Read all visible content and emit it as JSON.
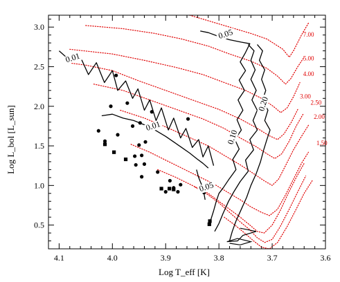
{
  "chart_data": {
    "type": "scatter",
    "title": "",
    "xlabel": "Log T_eff [K]",
    "ylabel": "Log L_bol [L_sun]",
    "xlim": [
      4.12,
      3.6
    ],
    "ylim": [
      0.2,
      3.15
    ],
    "x_inverted": true,
    "grid": false,
    "colors": {
      "axes": "#000000",
      "tracks": "#e00000",
      "contours": "#000000",
      "markers": "#000000"
    },
    "xticks": [
      {
        "value": 4.1,
        "label": "4.1"
      },
      {
        "value": 4.0,
        "label": "4.0"
      },
      {
        "value": 3.9,
        "label": "3.9"
      },
      {
        "value": 3.8,
        "label": "3.8"
      },
      {
        "value": 3.7,
        "label": "3.7"
      },
      {
        "value": 3.6,
        "label": "3.6"
      }
    ],
    "yticks": [
      {
        "value": 0.5,
        "label": "0.5"
      },
      {
        "value": 1.0,
        "label": "1.0"
      },
      {
        "value": 1.5,
        "label": "1.5"
      },
      {
        "value": 2.0,
        "label": "2.0"
      },
      {
        "value": 2.5,
        "label": "2.5"
      },
      {
        "value": 3.0,
        "label": "3.0"
      }
    ],
    "contours": [
      {
        "label": "0.01",
        "label_pos": [
          4.073,
          2.58
        ],
        "points": [
          [
            4.1,
            2.7
          ],
          [
            4.08,
            2.58
          ],
          [
            4.06,
            2.62
          ],
          [
            4.045,
            2.4
          ],
          [
            4.03,
            2.55
          ],
          [
            4.015,
            2.3
          ],
          [
            4.0,
            2.45
          ],
          [
            3.99,
            2.2
          ],
          [
            3.975,
            2.32
          ],
          [
            3.962,
            2.1
          ],
          [
            3.952,
            2.22
          ],
          [
            3.94,
            1.95
          ],
          [
            3.93,
            2.08
          ],
          [
            3.918,
            1.82
          ],
          [
            3.908,
            1.98
          ],
          [
            3.895,
            1.7
          ],
          [
            3.885,
            1.85
          ],
          [
            3.872,
            1.6
          ],
          [
            3.862,
            1.72
          ],
          [
            3.85,
            1.48
          ],
          [
            3.838,
            1.58
          ],
          [
            3.83,
            1.36
          ],
          [
            3.82,
            1.5
          ],
          [
            3.81,
            1.25
          ]
        ]
      },
      {
        "label": "0.01",
        "label_pos": [
          3.922,
          1.72
        ],
        "points": [
          [
            4.02,
            1.88
          ],
          [
            4.0,
            1.9
          ],
          [
            3.98,
            1.85
          ],
          [
            3.96,
            1.82
          ],
          [
            3.945,
            1.78
          ],
          [
            3.93,
            1.74
          ],
          [
            3.915,
            1.68
          ],
          [
            3.9,
            1.62
          ],
          [
            3.885,
            1.55
          ],
          [
            3.87,
            1.48
          ],
          [
            3.855,
            1.41
          ],
          [
            3.842,
            1.34
          ],
          [
            3.83,
            1.28
          ],
          [
            3.82,
            1.22
          ]
        ]
      },
      {
        "label": "0.05",
        "label_pos": [
          3.786,
          2.88
        ],
        "points": [
          [
            3.835,
            2.95
          ],
          [
            3.82,
            2.93
          ],
          [
            3.8,
            2.88
          ],
          [
            3.78,
            2.84
          ],
          [
            3.758,
            2.81
          ],
          [
            3.742,
            2.79
          ],
          [
            3.75,
            2.68
          ],
          [
            3.76,
            2.56
          ],
          [
            3.75,
            2.45
          ],
          [
            3.762,
            2.33
          ],
          [
            3.752,
            2.2
          ],
          [
            3.764,
            2.08
          ],
          [
            3.755,
            1.95
          ],
          [
            3.766,
            1.83
          ],
          [
            3.758,
            1.7
          ],
          [
            3.77,
            1.58
          ],
          [
            3.762,
            1.46
          ],
          [
            3.774,
            1.33
          ],
          [
            3.768,
            1.2
          ],
          [
            3.782,
            1.07
          ],
          [
            3.792,
            0.97
          ],
          [
            3.8,
            0.9
          ],
          [
            3.805,
            0.8
          ],
          [
            3.81,
            0.68
          ],
          [
            3.816,
            0.55
          ]
        ]
      },
      {
        "label": "0.05",
        "label_pos": [
          3.822,
          0.95
        ],
        "points": [
          [
            3.842,
            1.2
          ],
          [
            3.838,
            1.1
          ],
          [
            3.832,
            1.0
          ],
          [
            3.828,
            0.9
          ],
          [
            3.826,
            0.82
          ]
        ]
      },
      {
        "label": "0.10",
        "label_pos": [
          3.77,
          1.6
        ],
        "points": [
          [
            3.745,
            2.78
          ],
          [
            3.734,
            2.7
          ],
          [
            3.74,
            2.58
          ],
          [
            3.732,
            2.46
          ],
          [
            3.74,
            2.34
          ],
          [
            3.73,
            2.2
          ],
          [
            3.738,
            2.08
          ],
          [
            3.728,
            1.95
          ],
          [
            3.736,
            1.82
          ],
          [
            3.728,
            1.7
          ],
          [
            3.742,
            1.58
          ],
          [
            3.735,
            1.45
          ],
          [
            3.75,
            1.32
          ],
          [
            3.745,
            1.18
          ],
          [
            3.76,
            1.05
          ],
          [
            3.772,
            0.92
          ],
          [
            3.782,
            0.8
          ],
          [
            3.792,
            0.65
          ],
          [
            3.8,
            0.52
          ],
          [
            3.808,
            0.42
          ]
        ]
      },
      {
        "label": "0.20",
        "label_pos": [
          3.712,
          2.02
        ],
        "points": [
          [
            3.728,
            2.78
          ],
          [
            3.718,
            2.7
          ],
          [
            3.724,
            2.58
          ],
          [
            3.714,
            2.46
          ],
          [
            3.72,
            2.34
          ],
          [
            3.712,
            2.2
          ],
          [
            3.718,
            2.08
          ],
          [
            3.708,
            1.95
          ],
          [
            3.714,
            1.82
          ],
          [
            3.704,
            1.7
          ],
          [
            3.71,
            1.58
          ],
          [
            3.716,
            1.45
          ],
          [
            3.722,
            1.3
          ],
          [
            3.73,
            1.15
          ],
          [
            3.74,
            1.0
          ],
          [
            3.748,
            0.85
          ],
          [
            3.758,
            0.7
          ],
          [
            3.768,
            0.55
          ],
          [
            3.775,
            0.42
          ],
          [
            3.78,
            0.3
          ]
        ]
      }
    ],
    "mass_tracks": [
      {
        "mass": "7.00",
        "label_pos": [
          3.642,
          2.88
        ],
        "points": [
          [
            3.855,
            3.15
          ],
          [
            3.82,
            3.08
          ],
          [
            3.78,
            3.0
          ],
          [
            3.74,
            2.92
          ],
          [
            3.71,
            2.85
          ],
          [
            3.68,
            2.72
          ],
          [
            3.668,
            2.62
          ],
          [
            3.66,
            2.7
          ],
          [
            3.645,
            2.9
          ],
          [
            3.632,
            3.05
          ]
        ]
      },
      {
        "mass": "5.00",
        "label_pos": [
          3.642,
          2.58
        ],
        "points": [
          [
            4.05,
            3.02
          ],
          [
            3.98,
            2.98
          ],
          [
            3.92,
            2.92
          ],
          [
            3.87,
            2.85
          ],
          [
            3.82,
            2.76
          ],
          [
            3.78,
            2.66
          ],
          [
            3.74,
            2.57
          ],
          [
            3.71,
            2.48
          ],
          [
            3.69,
            2.38
          ],
          [
            3.675,
            2.28
          ],
          [
            3.665,
            2.35
          ],
          [
            3.652,
            2.5
          ],
          [
            3.64,
            2.62
          ]
        ]
      },
      {
        "mass": "4.00",
        "label_pos": [
          3.642,
          2.38
        ],
        "points": [
          [
            4.08,
            2.72
          ],
          [
            4.0,
            2.66
          ],
          [
            3.94,
            2.58
          ],
          [
            3.88,
            2.49
          ],
          [
            3.83,
            2.4
          ],
          [
            3.79,
            2.3
          ],
          [
            3.75,
            2.2
          ],
          [
            3.72,
            2.1
          ],
          [
            3.698,
            2.0
          ],
          [
            3.684,
            1.92
          ],
          [
            3.672,
            1.98
          ],
          [
            3.66,
            2.12
          ],
          [
            3.648,
            2.3
          ]
        ]
      },
      {
        "mass": "3.00",
        "label_pos": [
          3.648,
          2.1
        ],
        "points": [
          [
            4.085,
            2.55
          ],
          [
            4.05,
            2.52
          ],
          [
            4.0,
            2.45
          ],
          [
            3.95,
            2.32
          ],
          [
            3.9,
            2.2
          ],
          [
            3.85,
            2.08
          ],
          [
            3.8,
            1.96
          ],
          [
            3.76,
            1.84
          ],
          [
            3.73,
            1.73
          ],
          [
            3.706,
            1.63
          ],
          [
            3.69,
            1.58
          ],
          [
            3.678,
            1.65
          ],
          [
            3.664,
            1.8
          ],
          [
            3.652,
            1.96
          ]
        ]
      },
      {
        "mass": "2.50",
        "label_pos": [
          3.628,
          2.02
        ],
        "points": [
          [
            4.035,
            2.28
          ],
          [
            3.98,
            2.2
          ],
          [
            3.93,
            2.08
          ],
          [
            3.88,
            1.96
          ],
          [
            3.83,
            1.84
          ],
          [
            3.79,
            1.72
          ],
          [
            3.76,
            1.6
          ],
          [
            3.73,
            1.49
          ],
          [
            3.71,
            1.4
          ],
          [
            3.695,
            1.34
          ],
          [
            3.682,
            1.4
          ],
          [
            3.668,
            1.56
          ],
          [
            3.655,
            1.75
          ],
          [
            3.642,
            1.9
          ]
        ]
      },
      {
        "mass": "2.00",
        "label_pos": [
          3.622,
          1.84
        ],
        "points": [
          [
            3.985,
            1.95
          ],
          [
            3.94,
            1.85
          ],
          [
            3.9,
            1.74
          ],
          [
            3.86,
            1.62
          ],
          [
            3.82,
            1.5
          ],
          [
            3.79,
            1.38
          ],
          [
            3.76,
            1.26
          ],
          [
            3.735,
            1.15
          ],
          [
            3.715,
            1.06
          ],
          [
            3.7,
            1.0
          ],
          [
            3.688,
            1.08
          ],
          [
            3.675,
            1.25
          ],
          [
            3.66,
            1.45
          ],
          [
            3.645,
            1.62
          ],
          [
            3.632,
            1.76
          ]
        ]
      },
      {
        "mass": "1.50",
        "label_pos": [
          3.617,
          1.51
        ],
        "points": [
          [
            3.965,
            1.52
          ],
          [
            3.93,
            1.42
          ],
          [
            3.9,
            1.32
          ],
          [
            3.87,
            1.22
          ],
          [
            3.84,
            1.12
          ],
          [
            3.81,
            1.02
          ],
          [
            3.785,
            0.92
          ],
          [
            3.76,
            0.82
          ],
          [
            3.74,
            0.73
          ],
          [
            3.72,
            0.66
          ],
          [
            3.705,
            0.62
          ],
          [
            3.69,
            0.7
          ],
          [
            3.675,
            0.88
          ],
          [
            3.66,
            1.08
          ],
          [
            3.645,
            1.28
          ],
          [
            3.632,
            1.42
          ]
        ]
      },
      {
        "mass": "",
        "label_pos": null,
        "points": [
          [
            3.915,
            1.2
          ],
          [
            3.88,
            1.1
          ],
          [
            3.85,
            1.0
          ],
          [
            3.82,
            0.9
          ],
          [
            3.8,
            0.8
          ],
          [
            3.78,
            0.7
          ],
          [
            3.76,
            0.6
          ],
          [
            3.742,
            0.5
          ],
          [
            3.728,
            0.42
          ],
          [
            3.715,
            0.4
          ],
          [
            3.7,
            0.5
          ],
          [
            3.685,
            0.68
          ],
          [
            3.67,
            0.9
          ],
          [
            3.655,
            1.1
          ],
          [
            3.64,
            1.28
          ]
        ]
      },
      {
        "mass": "",
        "label_pos": null,
        "points": [
          [
            3.845,
            0.98
          ],
          [
            3.82,
            0.88
          ],
          [
            3.8,
            0.78
          ],
          [
            3.78,
            0.66
          ],
          [
            3.76,
            0.54
          ],
          [
            3.742,
            0.44
          ],
          [
            3.728,
            0.34
          ],
          [
            3.714,
            0.28
          ],
          [
            3.7,
            0.32
          ],
          [
            3.685,
            0.48
          ],
          [
            3.668,
            0.7
          ],
          [
            3.652,
            0.92
          ],
          [
            3.637,
            1.12
          ]
        ]
      },
      {
        "mass": "",
        "label_pos": null,
        "points": [
          [
            3.79,
            0.6
          ],
          [
            3.77,
            0.5
          ],
          [
            3.752,
            0.4
          ],
          [
            3.735,
            0.3
          ],
          [
            3.72,
            0.22
          ],
          [
            3.705,
            0.18
          ],
          [
            3.69,
            0.28
          ],
          [
            3.672,
            0.48
          ],
          [
            3.655,
            0.7
          ],
          [
            3.64,
            0.9
          ],
          [
            3.625,
            1.06
          ]
        ]
      }
    ],
    "zams_segment": [
      [
        3.78,
        0.27
      ],
      [
        3.76,
        0.25
      ],
      [
        3.74,
        0.29
      ],
      [
        3.765,
        0.33
      ],
      [
        3.785,
        0.29
      ],
      [
        3.765,
        0.3
      ],
      [
        3.755,
        0.37
      ],
      [
        3.73,
        0.42
      ],
      [
        3.76,
        0.46
      ]
    ],
    "circle_points": [
      [
        3.993,
        2.39
      ],
      [
        4.003,
        2.0
      ],
      [
        3.972,
        2.04
      ],
      [
        3.99,
        1.64
      ],
      [
        3.962,
        1.75
      ],
      [
        3.926,
        1.93
      ],
      [
        3.858,
        1.84
      ],
      [
        3.948,
        1.79
      ],
      [
        4.026,
        1.69
      ],
      [
        4.014,
        1.56
      ],
      [
        3.938,
        1.55
      ],
      [
        3.95,
        1.51
      ],
      [
        3.958,
        1.37
      ],
      [
        3.945,
        1.38
      ],
      [
        3.94,
        1.27
      ],
      [
        3.956,
        1.26
      ],
      [
        3.915,
        1.17
      ],
      [
        3.945,
        1.11
      ],
      [
        3.892,
        1.06
      ],
      [
        3.872,
        1.01
      ],
      [
        3.885,
        0.97
      ],
      [
        3.9,
        0.92
      ],
      [
        3.877,
        0.92
      ],
      [
        3.828,
        0.91
      ]
    ],
    "square_points": [
      [
        4.014,
        1.52
      ],
      [
        3.997,
        1.42
      ],
      [
        3.975,
        1.33
      ],
      [
        3.908,
        0.96
      ],
      [
        3.893,
        0.96
      ],
      [
        3.885,
        0.95
      ],
      [
        3.817,
        0.55
      ],
      [
        3.818,
        0.51
      ]
    ]
  }
}
